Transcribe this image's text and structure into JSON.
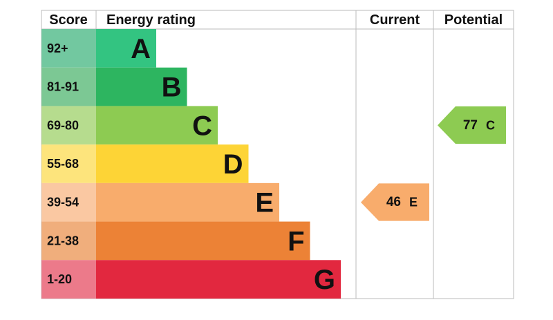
{
  "header": {
    "score": "Score",
    "rating": "Energy rating",
    "current": "Current",
    "potential": "Potential"
  },
  "bands": [
    {
      "score": "92+",
      "letter": "A",
      "color": "#33c481",
      "score_color": "#72c8a0"
    },
    {
      "score": "81-91",
      "letter": "B",
      "color": "#2db560",
      "score_color": "#7cc894"
    },
    {
      "score": "69-80",
      "letter": "C",
      "color": "#8dcb52",
      "score_color": "#b6dc8e"
    },
    {
      "score": "55-68",
      "letter": "D",
      "color": "#fdd436",
      "score_color": "#fde47c"
    },
    {
      "score": "39-54",
      "letter": "E",
      "color": "#f8ac6c",
      "score_color": "#fac8a2"
    },
    {
      "score": "21-38",
      "letter": "F",
      "color": "#ec8236",
      "score_color": "#f0ae7c"
    },
    {
      "score": "1-20",
      "letter": "G",
      "color": "#e2283f",
      "score_color": "#ec7a8a"
    }
  ],
  "current": {
    "value": 46,
    "letter": "E"
  },
  "potential": {
    "value": 77,
    "letter": "C"
  }
}
